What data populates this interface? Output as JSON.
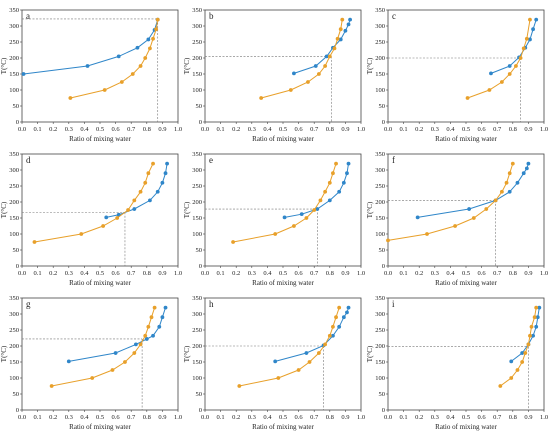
{
  "colors": {
    "series_blue": "#2f86c9",
    "series_orange": "#e8a02a",
    "axis": "#444444",
    "refline": "#777777"
  },
  "chart_data": [
    {
      "label": "a",
      "type": "line",
      "xlabel": "Ratio of mixing water",
      "ylabel": "T(°C)",
      "xlim": [
        0.0,
        1.0
      ],
      "ylim": [
        0,
        350
      ],
      "xticks": [
        "0.0",
        "0.1",
        "0.2",
        "0.3",
        "0.4",
        "0.5",
        "0.6",
        "0.7",
        "0.8",
        "0.9",
        "1.0"
      ],
      "yticks": [
        "0",
        "50",
        "100",
        "150",
        "200",
        "250",
        "300",
        "350"
      ],
      "series": [
        {
          "color": "blue",
          "x": [
            0.01,
            0.42,
            0.62,
            0.74,
            0.81,
            0.85,
            0.87
          ],
          "y": [
            150,
            175,
            205,
            232,
            258,
            288,
            320
          ]
        },
        {
          "color": "orange",
          "x": [
            0.31,
            0.53,
            0.64,
            0.71,
            0.76,
            0.79,
            0.82,
            0.84,
            0.86,
            0.87
          ],
          "y": [
            75,
            100,
            125,
            150,
            175,
            200,
            230,
            260,
            290,
            320
          ]
        }
      ],
      "crossover": {
        "x": 0.87,
        "y": 322
      }
    },
    {
      "label": "b",
      "type": "line",
      "xlabel": "Ratio of mixing water",
      "ylabel": "T(°C)",
      "xlim": [
        0.0,
        1.0
      ],
      "ylim": [
        0,
        350
      ],
      "xticks": [
        "0.0",
        "0.1",
        "0.2",
        "0.3",
        "0.4",
        "0.5",
        "0.6",
        "0.7",
        "0.8",
        "0.9",
        "1.0"
      ],
      "yticks": [
        "0",
        "50",
        "100",
        "150",
        "200",
        "250",
        "300",
        "350"
      ],
      "series": [
        {
          "color": "blue",
          "x": [
            0.57,
            0.71,
            0.78,
            0.82,
            0.87,
            0.9,
            0.92,
            0.93
          ],
          "y": [
            152,
            175,
            205,
            232,
            258,
            285,
            305,
            320
          ]
        },
        {
          "color": "orange",
          "x": [
            0.36,
            0.55,
            0.66,
            0.73,
            0.77,
            0.8,
            0.83,
            0.85,
            0.87,
            0.88
          ],
          "y": [
            75,
            100,
            125,
            150,
            175,
            205,
            230,
            260,
            290,
            320
          ]
        }
      ],
      "crossover": {
        "x": 0.81,
        "y": 205
      }
    },
    {
      "label": "c",
      "type": "line",
      "xlabel": "Ratio of mixing water",
      "ylabel": "T(°C)",
      "xlim": [
        0.0,
        1.0
      ],
      "ylim": [
        0,
        350
      ],
      "xticks": [
        "0.0",
        "0.1",
        "0.2",
        "0.3",
        "0.4",
        "0.5",
        "0.6",
        "0.7",
        "0.8",
        "0.9",
        "1.0"
      ],
      "yticks": [
        "0",
        "50",
        "100",
        "150",
        "200",
        "250",
        "300",
        "350"
      ],
      "series": [
        {
          "color": "blue",
          "x": [
            0.66,
            0.78,
            0.84,
            0.88,
            0.91,
            0.93,
            0.95
          ],
          "y": [
            152,
            175,
            202,
            232,
            258,
            290,
            320
          ]
        },
        {
          "color": "orange",
          "x": [
            0.51,
            0.65,
            0.73,
            0.78,
            0.82,
            0.85,
            0.87,
            0.89,
            0.91
          ],
          "y": [
            75,
            100,
            125,
            150,
            175,
            200,
            230,
            260,
            320
          ]
        }
      ],
      "crossover": {
        "x": 0.85,
        "y": 200
      }
    },
    {
      "label": "d",
      "type": "line",
      "xlabel": "Ratio of mixing water",
      "ylabel": "T(°C)",
      "xlim": [
        0.0,
        1.0
      ],
      "ylim": [
        0,
        350
      ],
      "xticks": [
        "0.0",
        "0.1",
        "0.2",
        "0.3",
        "0.4",
        "0.5",
        "0.6",
        "0.7",
        "0.8",
        "0.9",
        "1.0"
      ],
      "yticks": [
        "0",
        "50",
        "100",
        "150",
        "200",
        "250",
        "300",
        "350"
      ],
      "series": [
        {
          "color": "blue",
          "x": [
            0.54,
            0.62,
            0.72,
            0.82,
            0.87,
            0.9,
            0.92,
            0.93
          ],
          "y": [
            152,
            160,
            178,
            205,
            232,
            260,
            290,
            320
          ]
        },
        {
          "color": "orange",
          "x": [
            0.08,
            0.38,
            0.52,
            0.61,
            0.68,
            0.72,
            0.76,
            0.79,
            0.81,
            0.84
          ],
          "y": [
            75,
            100,
            125,
            150,
            175,
            205,
            232,
            260,
            290,
            320
          ]
        }
      ],
      "crossover": {
        "x": 0.66,
        "y": 168
      }
    },
    {
      "label": "e",
      "type": "line",
      "xlabel": "Ratio of mixing water",
      "ylabel": "T(°C)",
      "xlim": [
        0.0,
        1.0
      ],
      "ylim": [
        0,
        350
      ],
      "xticks": [
        "0.0",
        "0.1",
        "0.2",
        "0.3",
        "0.4",
        "0.5",
        "0.6",
        "0.7",
        "0.8",
        "0.9",
        "1.0"
      ],
      "yticks": [
        "0",
        "50",
        "100",
        "150",
        "200",
        "250",
        "300",
        "350"
      ],
      "series": [
        {
          "color": "blue",
          "x": [
            0.51,
            0.62,
            0.72,
            0.8,
            0.86,
            0.89,
            0.91,
            0.92
          ],
          "y": [
            152,
            162,
            178,
            205,
            232,
            260,
            290,
            320
          ]
        },
        {
          "color": "orange",
          "x": [
            0.18,
            0.45,
            0.57,
            0.65,
            0.7,
            0.74,
            0.77,
            0.8,
            0.82,
            0.84
          ],
          "y": [
            75,
            100,
            125,
            150,
            175,
            205,
            232,
            260,
            290,
            320
          ]
        }
      ],
      "crossover": {
        "x": 0.72,
        "y": 178
      }
    },
    {
      "label": "f",
      "type": "line",
      "xlabel": "Ratio of mixing water",
      "ylabel": "T(°C)",
      "xlim": [
        0.0,
        1.0
      ],
      "ylim": [
        0,
        350
      ],
      "xticks": [
        "0.0",
        "0.1",
        "0.2",
        "0.3",
        "0.4",
        "0.5",
        "0.6",
        "0.7",
        "0.8",
        "0.9",
        "1.0"
      ],
      "yticks": [
        "0",
        "50",
        "100",
        "150",
        "200",
        "250",
        "300",
        "350"
      ],
      "series": [
        {
          "color": "blue",
          "x": [
            0.19,
            0.52,
            0.69,
            0.78,
            0.83,
            0.87,
            0.89,
            0.9
          ],
          "y": [
            152,
            178,
            205,
            232,
            260,
            290,
            305,
            320
          ]
        },
        {
          "color": "orange",
          "x": [
            0.0,
            0.25,
            0.43,
            0.55,
            0.63,
            0.69,
            0.73,
            0.76,
            0.78,
            0.8
          ],
          "y": [
            80,
            100,
            125,
            150,
            178,
            205,
            232,
            260,
            290,
            320
          ]
        }
      ],
      "crossover": {
        "x": 0.69,
        "y": 205
      }
    },
    {
      "label": "g",
      "type": "line",
      "xlabel": "Ratio of mixing water",
      "ylabel": "T(°C)",
      "xlim": [
        0.0,
        1.0
      ],
      "ylim": [
        0,
        350
      ],
      "xticks": [
        "0.0",
        "0.1",
        "0.2",
        "0.3",
        "0.4",
        "0.5",
        "0.6",
        "0.7",
        "0.8",
        "0.9",
        "1.0"
      ],
      "yticks": [
        "0",
        "50",
        "100",
        "150",
        "200",
        "250",
        "300",
        "350"
      ],
      "series": [
        {
          "color": "blue",
          "x": [
            0.3,
            0.6,
            0.73,
            0.8,
            0.84,
            0.88,
            0.9,
            0.92
          ],
          "y": [
            152,
            178,
            205,
            222,
            232,
            260,
            290,
            320
          ]
        },
        {
          "color": "orange",
          "x": [
            0.19,
            0.45,
            0.58,
            0.66,
            0.72,
            0.76,
            0.79,
            0.81,
            0.83,
            0.85
          ],
          "y": [
            75,
            100,
            125,
            150,
            178,
            205,
            232,
            260,
            290,
            320
          ]
        }
      ],
      "crossover": {
        "x": 0.77,
        "y": 222
      }
    },
    {
      "label": "h",
      "type": "line",
      "xlabel": "Ratio of mixing water",
      "ylabel": "T(°C)",
      "xlim": [
        0.0,
        1.0
      ],
      "ylim": [
        0,
        350
      ],
      "xticks": [
        "0.0",
        "0.1",
        "0.2",
        "0.3",
        "0.4",
        "0.5",
        "0.6",
        "0.7",
        "0.8",
        "0.9",
        "1.0"
      ],
      "yticks": [
        "0",
        "50",
        "100",
        "150",
        "200",
        "250",
        "300",
        "350"
      ],
      "series": [
        {
          "color": "blue",
          "x": [
            0.45,
            0.65,
            0.76,
            0.82,
            0.86,
            0.89,
            0.91,
            0.92
          ],
          "y": [
            152,
            178,
            202,
            232,
            260,
            290,
            305,
            320
          ]
        },
        {
          "color": "orange",
          "x": [
            0.22,
            0.47,
            0.6,
            0.67,
            0.73,
            0.77,
            0.8,
            0.82,
            0.84,
            0.86
          ],
          "y": [
            75,
            100,
            125,
            150,
            178,
            205,
            232,
            260,
            290,
            320
          ]
        }
      ],
      "crossover": {
        "x": 0.76,
        "y": 200
      }
    },
    {
      "label": "i",
      "type": "line",
      "xlabel": "Ratio of mixing water",
      "ylabel": "T(°C)",
      "xlim": [
        0.0,
        1.0
      ],
      "ylim": [
        0,
        350
      ],
      "xticks": [
        "0.0",
        "0.1",
        "0.2",
        "0.3",
        "0.4",
        "0.5",
        "0.6",
        "0.7",
        "0.8",
        "0.9",
        "1.0"
      ],
      "yticks": [
        "0",
        "50",
        "100",
        "150",
        "200",
        "250",
        "300",
        "350"
      ],
      "series": [
        {
          "color": "blue",
          "x": [
            0.79,
            0.86,
            0.9,
            0.93,
            0.95,
            0.96,
            0.97
          ],
          "y": [
            152,
            178,
            205,
            232,
            260,
            290,
            320
          ]
        },
        {
          "color": "orange",
          "x": [
            0.72,
            0.79,
            0.83,
            0.86,
            0.88,
            0.9,
            0.91,
            0.92,
            0.94,
            0.95
          ],
          "y": [
            75,
            100,
            125,
            150,
            178,
            205,
            232,
            260,
            290,
            320
          ]
        }
      ],
      "crossover": {
        "x": 0.9,
        "y": 198
      }
    }
  ]
}
